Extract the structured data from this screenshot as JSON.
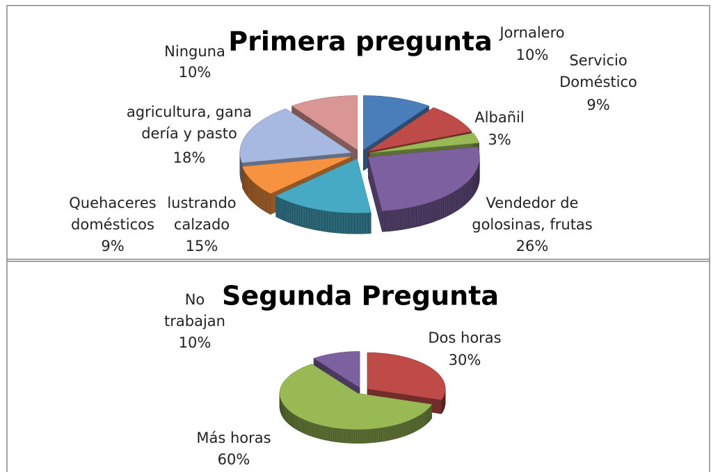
{
  "chart_data": [
    {
      "type": "pie",
      "title": "Primera pregunta",
      "categories": [
        "Jornalero",
        "Servicio Doméstico",
        "Albañil",
        "Vendedor de golosinas, frutas",
        "lustrando calzado",
        "Quehaceres domésticos",
        "agricultura, gana dería y pasto",
        "Ninguna"
      ],
      "values": [
        10,
        9,
        3,
        26,
        15,
        9,
        18,
        10
      ],
      "value_labels": [
        "10%",
        "9%",
        "3%",
        "26%",
        "15%",
        "9%",
        "18%",
        "10%"
      ],
      "colors": [
        "#4a7ebb",
        "#be4b48",
        "#98b954",
        "#7d60a0",
        "#46aac5",
        "#f69240",
        "#a7b9e0",
        "#d99694"
      ]
    },
    {
      "type": "pie",
      "title": "Segunda Pregunta",
      "categories": [
        "Dos horas",
        "Más horas",
        "No trabajan"
      ],
      "values": [
        30,
        60,
        10
      ],
      "value_labels": [
        "30%",
        "60%",
        "10%"
      ],
      "colors": [
        "#be4b48",
        "#98b954",
        "#7d60a0"
      ]
    }
  ]
}
